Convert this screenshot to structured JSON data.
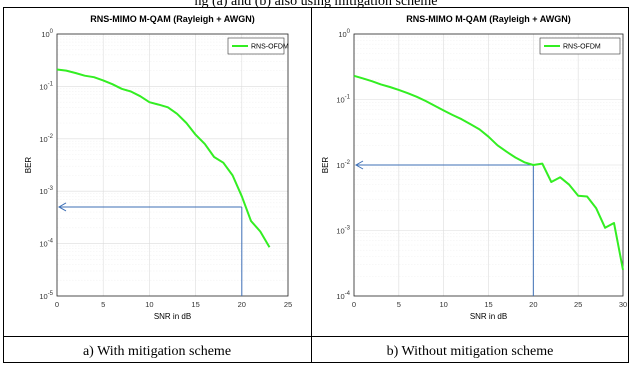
{
  "top_text": "ng (a) and (b) also using mitigation scheme",
  "captions": [
    "a)  With mitigation scheme",
    "b)  Without mitigation scheme"
  ],
  "colors": {
    "series": "#33ee22",
    "annotation": "#3d6fb6",
    "grid": "#dcdcdc"
  },
  "chart_data": [
    {
      "type": "line",
      "title": "RNS-MIMO M-QAM (Rayleigh + AWGN)",
      "xlabel": "SNR in dB",
      "ylabel": "BER",
      "xlim": [
        0,
        25
      ],
      "ylim": [
        1e-05,
        1
      ],
      "yscale": "log",
      "grid": true,
      "legend_position": "top-right",
      "xticks": [
        "0",
        "5",
        "10",
        "15",
        "20",
        "25"
      ],
      "yticks": [
        {
          "value": 1e-05,
          "label": "10^-5"
        },
        {
          "value": 0.0001,
          "label": "10^-4"
        },
        {
          "value": 0.001,
          "label": "10^-3"
        },
        {
          "value": 0.01,
          "label": "10^-2"
        },
        {
          "value": 0.1,
          "label": "10^-1"
        },
        {
          "value": 1,
          "label": "10^0"
        }
      ],
      "series": [
        {
          "name": "RNS-OFDM",
          "x": [
            0,
            1,
            2,
            3,
            4,
            5,
            6,
            7,
            8,
            9,
            10,
            11,
            12,
            13,
            14,
            15,
            16,
            17,
            18,
            19,
            20,
            21,
            22,
            23
          ],
          "y": [
            0.21,
            0.2,
            0.18,
            0.16,
            0.15,
            0.13,
            0.11,
            0.09,
            0.08,
            0.065,
            0.05,
            0.045,
            0.04,
            0.03,
            0.02,
            0.012,
            0.008,
            0.0045,
            0.0035,
            0.002,
            0.0008,
            0.00027,
            0.00017,
            8.5e-05
          ]
        }
      ],
      "annotation": {
        "x": 20,
        "y": 0.0005
      }
    },
    {
      "type": "line",
      "title": "RNS-MIMO M-QAM (Rayleigh + AWGN)",
      "xlabel": "SNR in dB",
      "ylabel": "BER",
      "xlim": [
        0,
        30
      ],
      "ylim": [
        0.0001,
        1
      ],
      "yscale": "log",
      "grid": true,
      "legend_position": "top-right",
      "xticks": [
        "0",
        "5",
        "10",
        "15",
        "20",
        "25",
        "30"
      ],
      "yticks": [
        {
          "value": 0.0001,
          "label": "10^-4"
        },
        {
          "value": 0.001,
          "label": "10^-3"
        },
        {
          "value": 0.01,
          "label": "10^-2"
        },
        {
          "value": 0.1,
          "label": "10^-1"
        },
        {
          "value": 1,
          "label": "10^0"
        }
      ],
      "series": [
        {
          "name": "RNS-OFDM",
          "x": [
            0,
            1,
            2,
            3,
            4,
            5,
            6,
            7,
            8,
            9,
            10,
            11,
            12,
            13,
            14,
            15,
            16,
            17,
            18,
            19,
            20,
            21,
            22,
            23,
            24,
            25,
            26,
            27,
            28,
            29,
            30
          ],
          "y": [
            0.23,
            0.21,
            0.19,
            0.17,
            0.155,
            0.14,
            0.125,
            0.11,
            0.095,
            0.08,
            0.068,
            0.058,
            0.05,
            0.042,
            0.035,
            0.027,
            0.02,
            0.016,
            0.013,
            0.011,
            0.01,
            0.0105,
            0.0055,
            0.0065,
            0.005,
            0.0034,
            0.0033,
            0.0022,
            0.0011,
            0.0013,
            0.00025
          ]
        }
      ],
      "annotation": {
        "x": 20,
        "y": 0.01
      }
    }
  ]
}
